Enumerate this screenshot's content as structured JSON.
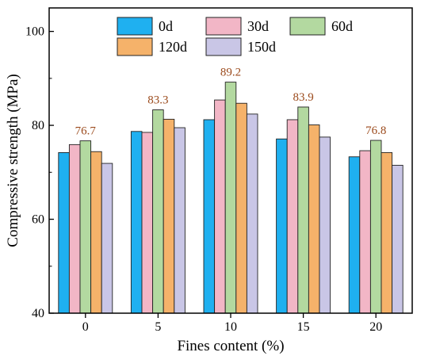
{
  "chart_data": {
    "type": "bar",
    "xlabel": "Fines content (%)",
    "ylabel": "Compressive strength (MPa)",
    "categories": [
      "0",
      "5",
      "10",
      "15",
      "20"
    ],
    "ylim": [
      40,
      105
    ],
    "yticks": [
      40,
      60,
      80,
      100
    ],
    "grid": false,
    "legend_position": "top",
    "series": [
      {
        "name": "0d",
        "color": "#1fb0f0",
        "values": [
          74.2,
          78.7,
          81.2,
          77.1,
          73.3
        ]
      },
      {
        "name": "30d",
        "color": "#f2b6c6",
        "values": [
          75.9,
          78.5,
          85.4,
          81.2,
          74.6
        ]
      },
      {
        "name": "60d",
        "color": "#b3d9a0",
        "values": [
          76.7,
          83.3,
          89.2,
          83.9,
          76.8
        ]
      },
      {
        "name": "120d",
        "color": "#f5b26a",
        "values": [
          74.4,
          81.3,
          84.7,
          80.1,
          74.2
        ]
      },
      {
        "name": "150d",
        "color": "#c9c6e6",
        "values": [
          71.9,
          79.5,
          82.4,
          77.5,
          71.5
        ]
      }
    ],
    "annotations": [
      {
        "category": "0",
        "series": "60d",
        "text": "76.7"
      },
      {
        "category": "5",
        "series": "60d",
        "text": "83.3"
      },
      {
        "category": "10",
        "series": "60d",
        "text": "89.2"
      },
      {
        "category": "15",
        "series": "60d",
        "text": "83.9"
      },
      {
        "category": "20",
        "series": "60d",
        "text": "76.8"
      }
    ]
  }
}
